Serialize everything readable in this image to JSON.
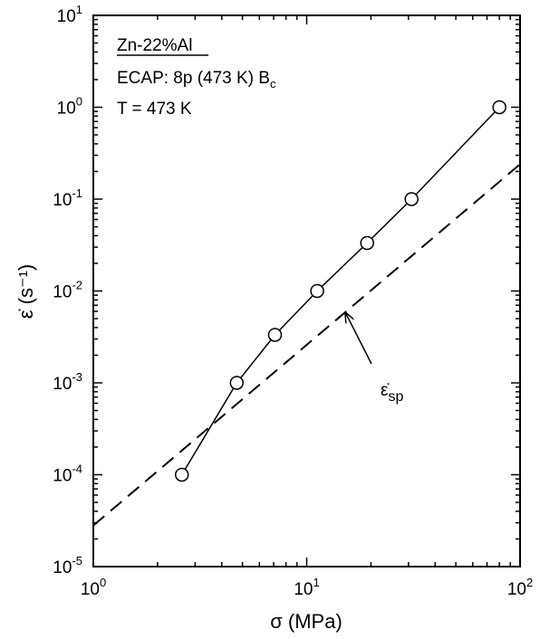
{
  "chart_data": {
    "type": "scatter",
    "x_scale": "log",
    "y_scale": "log",
    "xlim": [
      1,
      100
    ],
    "ylim": [
      1e-05,
      10
    ],
    "xlabel": "σ (MPa)",
    "ylabel": "ε̇ (s⁻¹)",
    "x_tick_labels": [
      {
        "value": 1,
        "base": "10",
        "exp": "0"
      },
      {
        "value": 10,
        "base": "10",
        "exp": "1"
      },
      {
        "value": 100,
        "base": "10",
        "exp": "2"
      }
    ],
    "y_tick_labels": [
      {
        "value": 1e-05,
        "base": "10",
        "exp": "-5"
      },
      {
        "value": 0.0001,
        "base": "10",
        "exp": "-4"
      },
      {
        "value": 0.001,
        "base": "10",
        "exp": "-3"
      },
      {
        "value": 0.01,
        "base": "10",
        "exp": "-2"
      },
      {
        "value": 0.1,
        "base": "10",
        "exp": "-1"
      },
      {
        "value": 1,
        "base": "10",
        "exp": "0"
      },
      {
        "value": 10,
        "base": "10",
        "exp": "1"
      }
    ],
    "grid": false,
    "series": [
      {
        "marker": "open-circle",
        "line": "solid",
        "color": "#000000",
        "points": [
          {
            "x": 2.6,
            "y": 0.0001
          },
          {
            "x": 4.7,
            "y": 0.001
          },
          {
            "x": 7.1,
            "y": 0.00333
          },
          {
            "x": 11.2,
            "y": 0.01
          },
          {
            "x": 19.2,
            "y": 0.0333
          },
          {
            "x": 31.0,
            "y": 0.1
          },
          {
            "x": 80.0,
            "y": 1.0
          }
        ]
      },
      {
        "line": "dashed",
        "color": "#000000",
        "points": [
          {
            "x": 1,
            "y": 2.8e-05
          },
          {
            "x": 100,
            "y": 0.24
          }
        ]
      }
    ],
    "annotations": {
      "material": "Zn-22%Al",
      "ecap_main": "ECAP: 8p (473 K) B",
      "ecap_sub": "c",
      "temperature": "T = 473 K",
      "dashed_label_main": "ε̇",
      "dashed_label_sub": "sp",
      "dashed_arrow_target": {
        "x": 15.2,
        "y": 0.0058
      }
    }
  }
}
